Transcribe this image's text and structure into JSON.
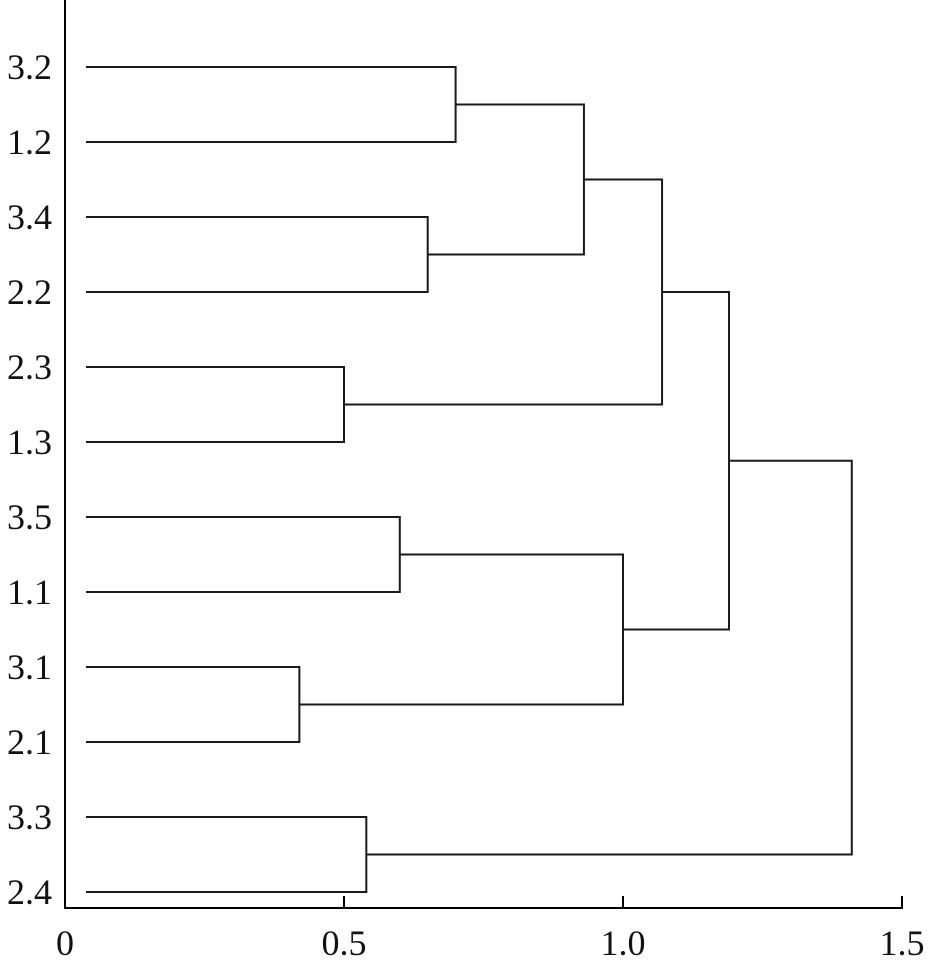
{
  "chart_data": {
    "type": "dendrogram",
    "orientation": "horizontal",
    "title": "",
    "xlabel": "",
    "ylabel": "",
    "xlim": [
      0,
      1.5
    ],
    "x_ticks": [
      0,
      0.5,
      1.0,
      1.5
    ],
    "x_tick_labels": [
      "0",
      "0.5",
      "1.0",
      "1.5"
    ],
    "leaves": [
      "3.2",
      "1.2",
      "3.4",
      "2.2",
      "2.3",
      "1.3",
      "3.5",
      "1.1",
      "3.1",
      "2.1",
      "3.3",
      "2.4"
    ],
    "merges": [
      {
        "id": "m1",
        "left": "3.1",
        "right": "2.1",
        "height": 0.42
      },
      {
        "id": "m2",
        "left": "2.3",
        "right": "1.3",
        "height": 0.5
      },
      {
        "id": "m3",
        "left": "3.3",
        "right": "2.4",
        "height": 0.54
      },
      {
        "id": "m4",
        "left": "3.5",
        "right": "1.1",
        "height": 0.6
      },
      {
        "id": "m5",
        "left": "3.4",
        "right": "2.2",
        "height": 0.65
      },
      {
        "id": "m6",
        "left": "3.2",
        "right": "1.2",
        "height": 0.7
      },
      {
        "id": "m7",
        "left": "m6",
        "right": "m5",
        "height": 0.93
      },
      {
        "id": "m8",
        "left": "m4",
        "right": "m1",
        "height": 1.0
      },
      {
        "id": "m9",
        "left": "m7",
        "right": "m2",
        "height": 1.07
      },
      {
        "id": "m10",
        "left": "m9",
        "right": "m8",
        "height": 1.19
      },
      {
        "id": "m11",
        "left": "m10",
        "right": "m3",
        "height": 1.41
      }
    ],
    "grid": false,
    "legend": "none"
  }
}
